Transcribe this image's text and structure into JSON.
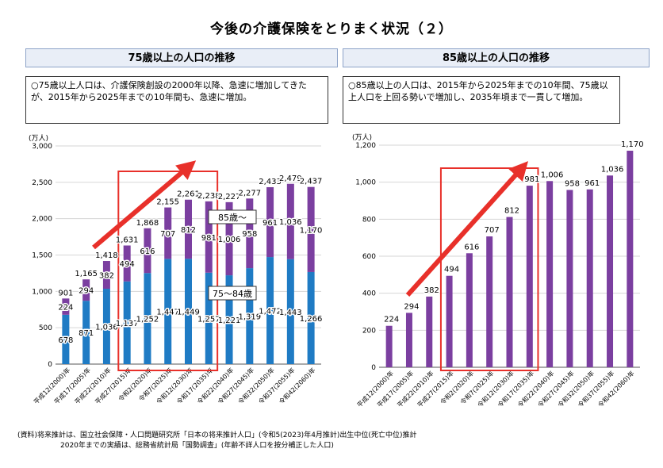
{
  "title": "今後の介護保険をとりまく状況（２）",
  "left_panel": {
    "header": "75歳以上の人口の推移",
    "note": "○75歳以上人口は、介護保険創設の2000年以降、急速に増加してきたが、2015年から2025年までの10年間も、急速に増加。",
    "label_85": "85歳～",
    "label_75_84": "75～84歳"
  },
  "right_panel": {
    "header": "85歳以上の人口の推移",
    "note": "○85歳以上の人口は、2015年から2025年までの10年間、75歳以上人口を上回る勢いで増加し、2035年頃まで一貫して増加。"
  },
  "footer": {
    "line1": "(資料)将来推計は、国立社会保障・人口問題研究所「日本の将来推計人口」(令和5(2023)年4月推計)出生中位(死亡中位)推計",
    "line2": "2020年までの実績は、総務省統計局「国勢調査」(年齢不詳人口を按分補正した人口)"
  },
  "chart_data": [
    {
      "type": "bar",
      "stacked": true,
      "ylabel": "(万人)",
      "ylim": [
        0,
        3000
      ],
      "yticks": [
        0,
        500,
        1000,
        1500,
        2000,
        2500,
        3000
      ],
      "tick_labels": [
        "0",
        "500",
        "1,000",
        "1,500",
        "2,000",
        "2,500",
        "3,000"
      ],
      "categories": [
        "平成12(2000)年",
        "平成17(2005)年",
        "平成22(2010)年",
        "平成27(2015)年",
        "令和2(2020)年",
        "令和7(2025)年",
        "令和12(2030)年",
        "令和17(2035)年",
        "令和22(2040)年",
        "令和27(2045)年",
        "令和32(2050)年",
        "令和37(2055)年",
        "令和42(2060)年"
      ],
      "series": [
        {
          "name": "75～84歳",
          "color": "#1f7bc4",
          "values": [
            678,
            871,
            1036,
            1137,
            1252,
            1447,
            1449,
            1257,
            1221,
            1319,
            1472,
            1443,
            1266
          ],
          "labels": [
            "678",
            "871",
            "1,036",
            "1,137",
            "1,252",
            "1,447",
            "1,449",
            "1,257",
            "1,221",
            "1,319",
            "1,472",
            "1,443",
            "1,266"
          ]
        },
        {
          "name": "85歳～",
          "color": "#7b3fa0",
          "values": [
            224,
            294,
            382,
            494,
            616,
            707,
            812,
            981,
            1006,
            958,
            961,
            1036,
            1170
          ],
          "labels": [
            "224",
            "294",
            "382",
            "494",
            "616",
            "707",
            "812",
            "981",
            "1,006",
            "958",
            "961",
            "1,036",
            "1,170"
          ]
        }
      ],
      "totals": [
        901,
        1165,
        1418,
        1631,
        1868,
        2155,
        2261,
        2238,
        2227,
        2277,
        2433,
        2479,
        2437
      ],
      "total_labels": [
        "901",
        "1,165",
        "1,418",
        "1,631",
        "1,868",
        "2,155",
        "2,261",
        "2,238",
        "2,227",
        "2,277",
        "2,433",
        "2,479",
        "2,437"
      ],
      "highlight": {
        "categories": [
          "平成27(2015)年",
          "令和17(2035)年"
        ],
        "color": "#e8302a"
      }
    },
    {
      "type": "bar",
      "ylabel": "(万人)",
      "ylim": [
        0,
        1200
      ],
      "yticks": [
        0,
        200,
        400,
        600,
        800,
        1000,
        1200
      ],
      "tick_labels": [
        "0",
        "200",
        "400",
        "600",
        "800",
        "1,000",
        "1,200"
      ],
      "categories": [
        "平成12(2000)年",
        "平成17(2005)年",
        "平成22(2010)年",
        "平成27(2015)年",
        "令和2(2020)年",
        "令和7(2025)年",
        "令和12(2030)年",
        "令和17(2035)年",
        "令和22(2040)年",
        "令和27(2045)年",
        "令和32(2050)年",
        "令和37(2055)年",
        "令和42(2060)年"
      ],
      "series": [
        {
          "name": "85歳～",
          "color": "#7b3fa0",
          "values": [
            224,
            294,
            382,
            494,
            616,
            707,
            812,
            981,
            1006,
            958,
            961,
            1036,
            1170
          ],
          "labels": [
            "224",
            "294",
            "382",
            "494",
            "616",
            "707",
            "812",
            "981",
            "1,006",
            "958",
            "961",
            "1,036",
            "1,170"
          ]
        }
      ],
      "highlight": {
        "categories": [
          "平成27(2015)年",
          "令和17(2035)年"
        ],
        "color": "#e8302a"
      }
    }
  ]
}
